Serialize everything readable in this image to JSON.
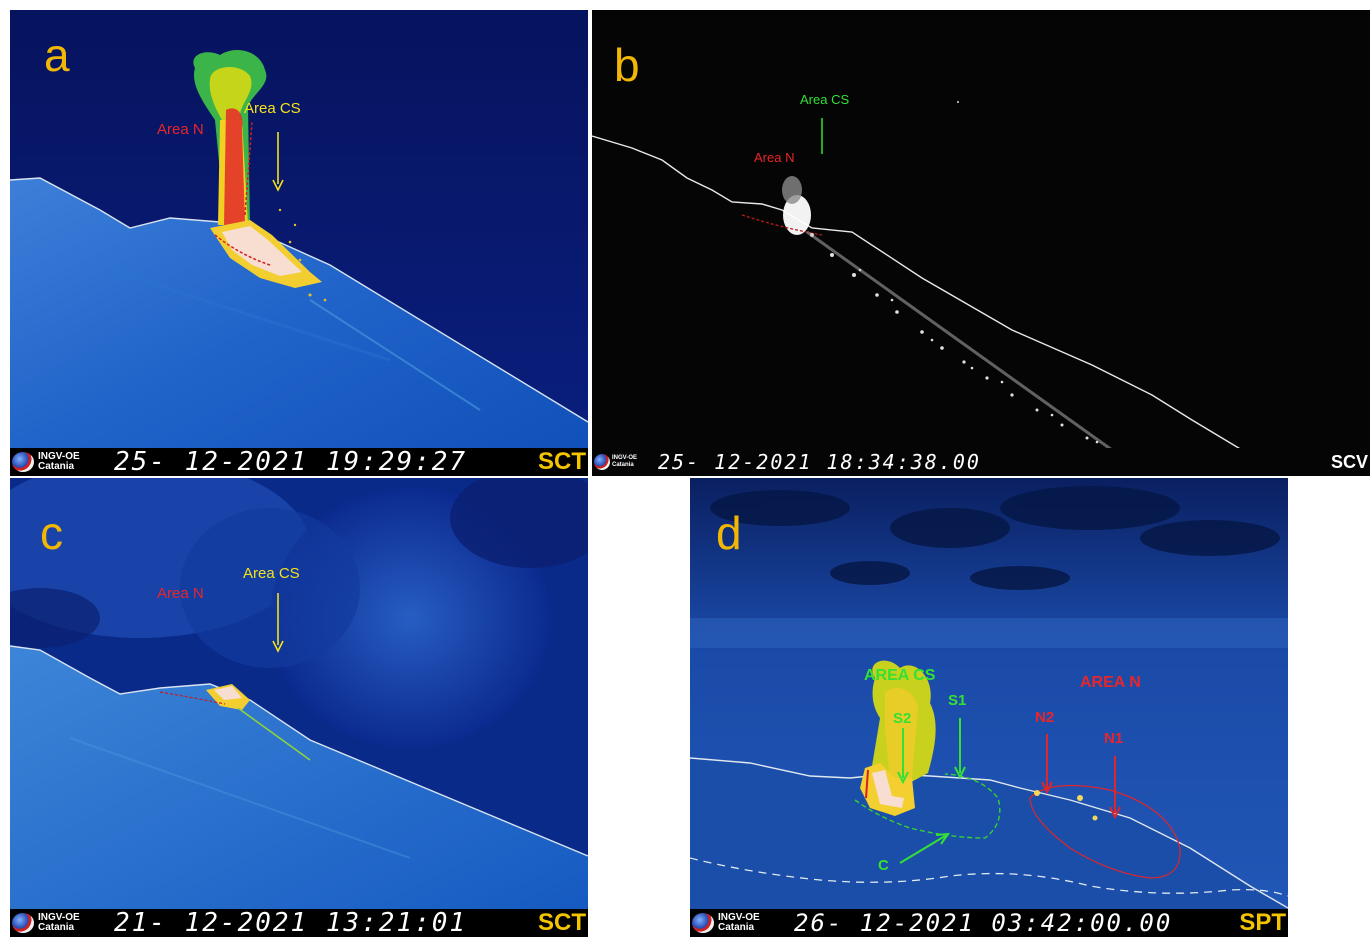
{
  "panels": {
    "a": {
      "letter": "a",
      "area_n": "Area N",
      "area_cs": "Area CS",
      "org_line1": "INGV-OE",
      "org_line2": "Catania",
      "timestamp": "25- 12-2021   19:29:27",
      "camera": "SCT"
    },
    "b": {
      "letter": "b",
      "area_cs": "Area CS",
      "area_n": "Area N",
      "org_line1": "INGV-OE",
      "org_line2": "Catania",
      "timestamp": "25- 12-2021  18:34:38.00",
      "camera": "SCV"
    },
    "c": {
      "letter": "c",
      "area_n": "Area N",
      "area_cs": "Area CS",
      "org_line1": "INGV-OE",
      "org_line2": "Catania",
      "timestamp": "21- 12-2021   13:21:01",
      "camera": "SCT"
    },
    "d": {
      "letter": "d",
      "area_cs": "AREA CS",
      "area_n": "AREA N",
      "s1": "S1",
      "s2": "S2",
      "n1": "N1",
      "n2": "N2",
      "c": "C",
      "org_line1": "INGV-OE",
      "org_line2": "Catania",
      "timestamp": "26- 12-2021  03:42:00.00",
      "camera": "SPT"
    }
  },
  "colors": {
    "letter": "#f2b705",
    "area_n_red": "#e8262a",
    "area_cs_yellow": "#f5e21a",
    "area_cs_green": "#35e035"
  }
}
